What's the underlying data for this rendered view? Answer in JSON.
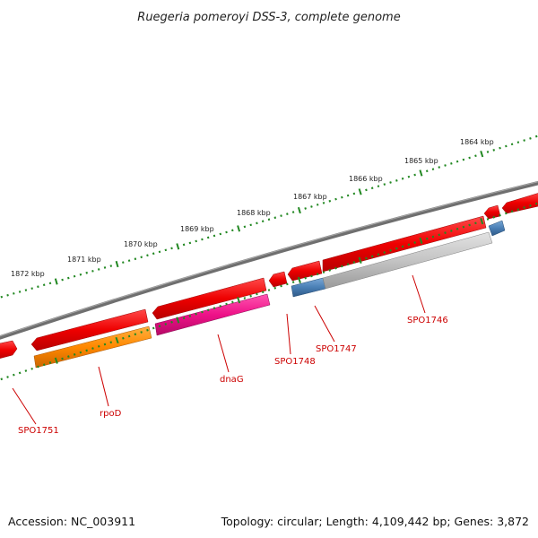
{
  "title": "Ruegeria pomeroyi DSS-3, complete genome",
  "footer": {
    "accession": "Accession: NC_003911",
    "topology": "Topology: circular; Length: 4,109,442 bp; Genes: 3,872"
  },
  "scale": {
    "unit": "kbp",
    "labels": [
      "1872 kbp",
      "1871 kbp",
      "1870 kbp",
      "1869 kbp",
      "1868 kbp",
      "1867 kbp",
      "1866 kbp",
      "1865 kbp",
      "1864 kbp"
    ]
  },
  "gene_labels": [
    "SPO1751",
    "rpoD",
    "dnaG",
    "SPO1748",
    "SPO1747",
    "SPO1746"
  ],
  "colors": {
    "backbone": "#7a7a7a",
    "gene": "#ee0000",
    "rpoD": "#ff8800",
    "dnaG": "#ee1188",
    "gray_feature": "#c4c4c4",
    "blue_feature": "#4a7fb5",
    "tick": "#228822",
    "label": "#cc0000"
  }
}
